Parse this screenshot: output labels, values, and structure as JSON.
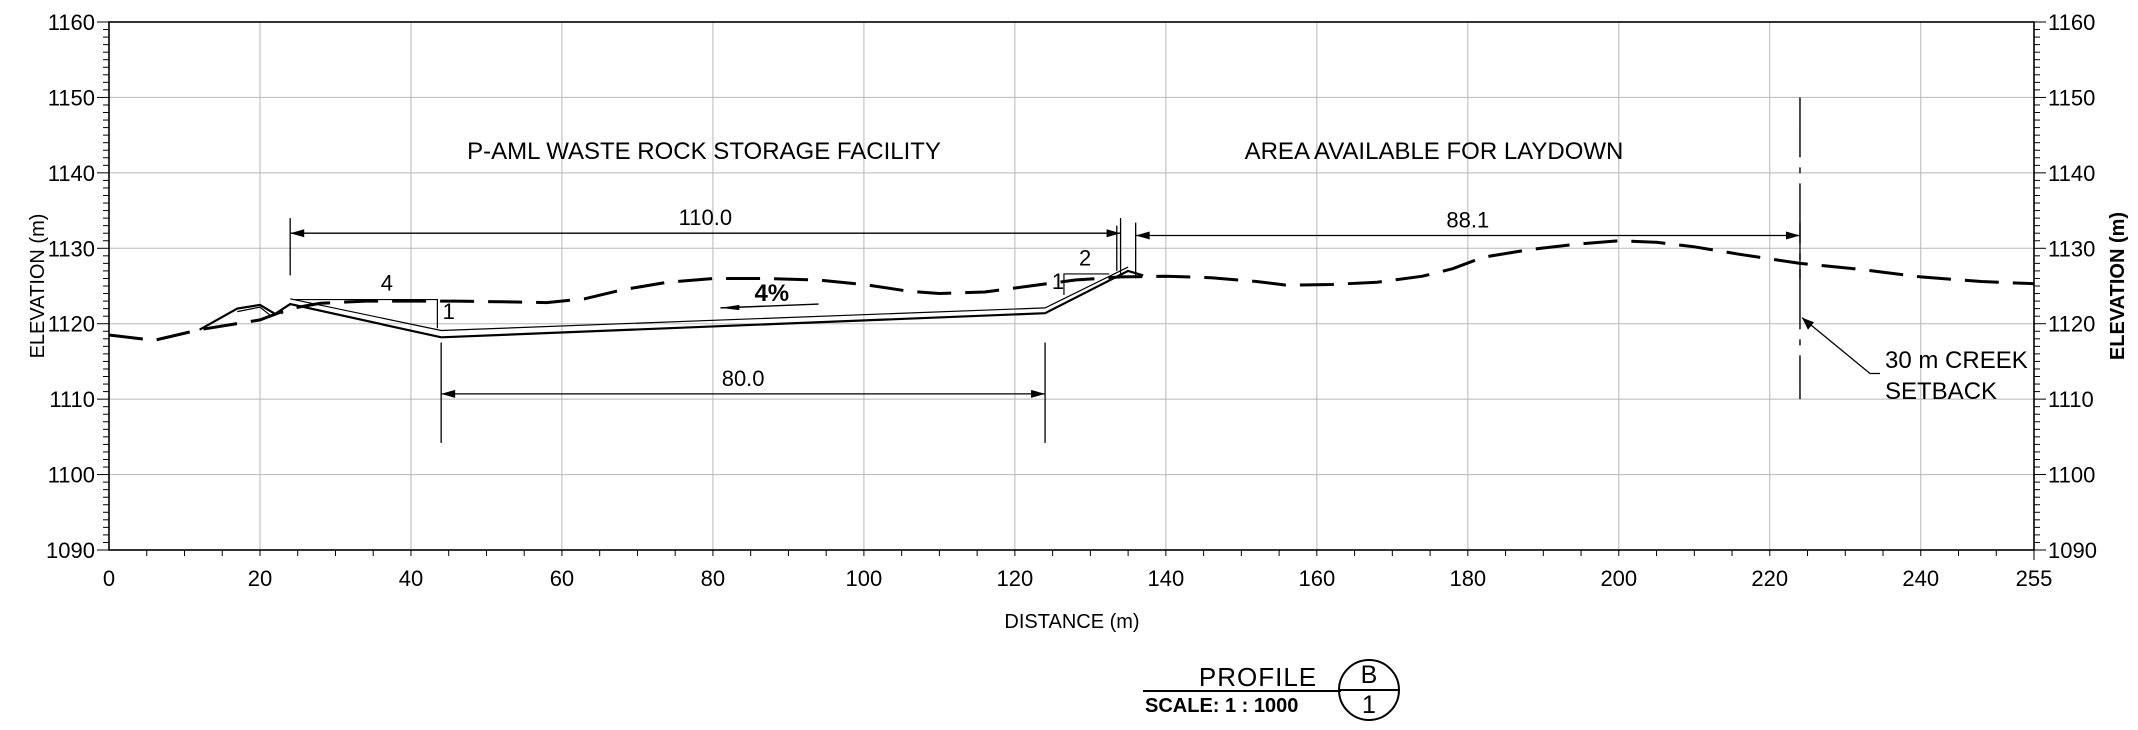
{
  "chart_data": {
    "type": "profile",
    "xlabel": "DISTANCE  (m)",
    "ylabel_left": "ELEVATION  (m)",
    "ylabel_right": "ELEVATION  (m)",
    "xlim": [
      0,
      255
    ],
    "ylim": [
      1090,
      1160
    ],
    "x_ticks": [
      0,
      20,
      40,
      60,
      80,
      100,
      120,
      140,
      160,
      180,
      200,
      220,
      240,
      255
    ],
    "y_ticks": [
      1090,
      1100,
      1110,
      1120,
      1130,
      1140,
      1150,
      1160
    ],
    "grid": true,
    "existing_ground": {
      "style": "dashed",
      "points": [
        [
          0,
          1118.5
        ],
        [
          6,
          1117.8
        ],
        [
          12,
          1119.2
        ],
        [
          20,
          1120.5
        ],
        [
          24,
          1122
        ],
        [
          28,
          1122.7
        ],
        [
          34,
          1123
        ],
        [
          40,
          1123
        ],
        [
          46,
          1123
        ],
        [
          52,
          1122.9
        ],
        [
          58,
          1122.8
        ],
        [
          63,
          1123.3
        ],
        [
          68,
          1124.5
        ],
        [
          74,
          1125.5
        ],
        [
          80,
          1126
        ],
        [
          87,
          1126
        ],
        [
          94,
          1125.8
        ],
        [
          100,
          1125.2
        ],
        [
          106,
          1124.3
        ],
        [
          110,
          1124
        ],
        [
          116,
          1124.2
        ],
        [
          122,
          1125
        ],
        [
          128,
          1125.8
        ],
        [
          134,
          1126.2
        ],
        [
          140,
          1126.3
        ],
        [
          146,
          1126.1
        ],
        [
          152,
          1125.6
        ],
        [
          156,
          1125.1
        ],
        [
          162,
          1125.2
        ],
        [
          168,
          1125.5
        ],
        [
          174,
          1126.3
        ],
        [
          178,
          1127.3
        ],
        [
          182,
          1128.8
        ],
        [
          188,
          1129.8
        ],
        [
          194,
          1130.5
        ],
        [
          200,
          1131
        ],
        [
          205,
          1130.8
        ],
        [
          210,
          1130.2
        ],
        [
          216,
          1129.2
        ],
        [
          224,
          1128
        ],
        [
          232,
          1127.2
        ],
        [
          240,
          1126.2
        ],
        [
          248,
          1125.6
        ],
        [
          255,
          1125.3
        ]
      ]
    },
    "design_profile": {
      "outer": [
        [
          12,
          1119.2
        ],
        [
          17,
          1122
        ],
        [
          20,
          1122.5
        ],
        [
          22,
          1121.3
        ],
        [
          24,
          1122.6
        ],
        [
          44,
          1118.2
        ],
        [
          124,
          1121.4
        ],
        [
          135,
          1127
        ],
        [
          137,
          1126.4
        ]
      ],
      "inner": [
        [
          24,
          1123.3
        ],
        [
          44,
          1119.1
        ],
        [
          124,
          1122.1
        ],
        [
          135,
          1127.5
        ]
      ],
      "left_bump": [
        [
          17,
          1121.6
        ],
        [
          20,
          1122.2
        ],
        [
          21.5,
          1121
        ],
        [
          22.5,
          1121.6
        ],
        [
          23,
          1121.3
        ]
      ]
    },
    "slope_ratios": [
      {
        "run": "4",
        "rise": "1"
      },
      {
        "run": "2",
        "rise": "1"
      }
    ],
    "grade": "4%",
    "dimensions": [
      {
        "value": "110.0",
        "from": 24,
        "to": 134
      },
      {
        "value": "88.1",
        "from": 136,
        "to": 224
      },
      {
        "value": "80.0",
        "from": 44,
        "to": 124
      }
    ],
    "setback_x": 224,
    "annotations": {
      "facility": "P-AML WASTE ROCK STORAGE FACILITY",
      "laydown": "AREA AVAILABLE FOR LAYDOWN",
      "setback_line1": "30 m CREEK",
      "setback_line2": "SETBACK"
    }
  },
  "title_block": {
    "title": "PROFILE",
    "scale": "SCALE:  1  :  1000",
    "section_letter": "B",
    "sheet_number": "1"
  }
}
